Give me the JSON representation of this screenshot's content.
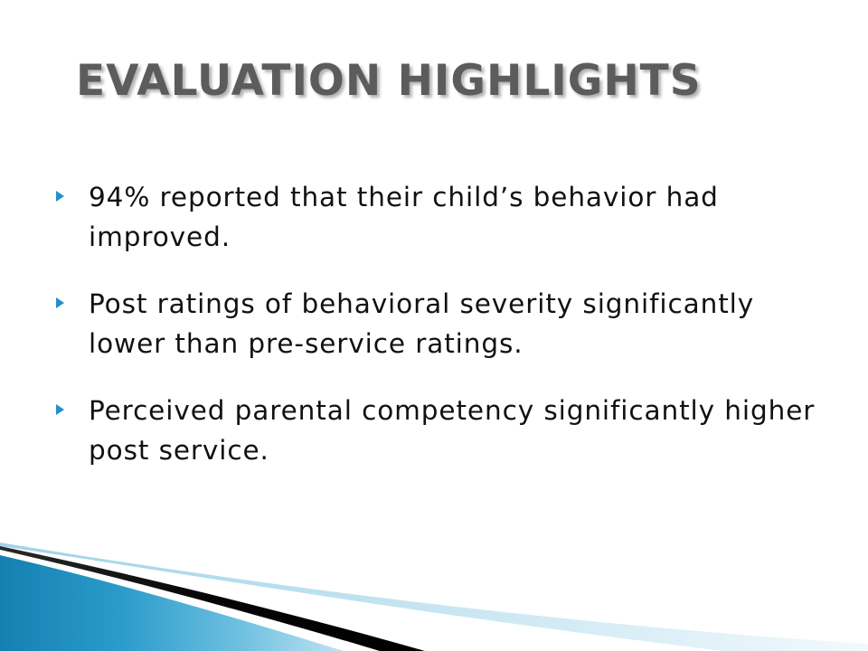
{
  "slide": {
    "title": "EVALUATION HIGHLIGHTS",
    "bullets": [
      "94% reported that their child’s behavior had improved.",
      "Post ratings of behavioral severity significantly lower than pre-service ratings.",
      "Perceived parental competency significantly higher post service."
    ],
    "bullet_icon": "triangle-right-icon"
  },
  "colors": {
    "title": "#5c5c5c",
    "text": "#111111",
    "accent": "#2490c9",
    "swoosh_dark": "#0a0a0a",
    "swoosh_blue": "#1f8fc0",
    "swoosh_light": "#a8d6ea"
  }
}
